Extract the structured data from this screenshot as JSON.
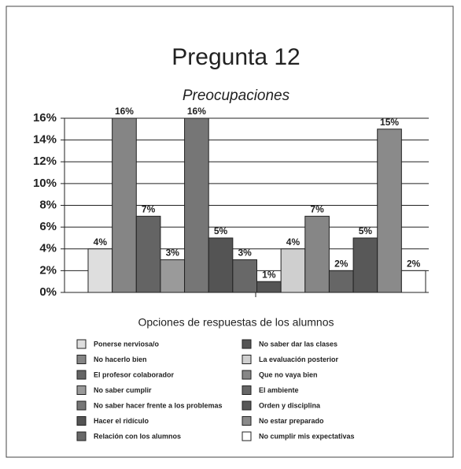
{
  "chart_data": {
    "type": "bar",
    "title": "Pregunta 12",
    "subtitle": "Preocupaciones",
    "xlabel": "Opciones de respuestas de los alumnos",
    "categories": [
      "Ponerse nerviosa/o",
      "No hacerlo bien",
      "El profesor colaborador",
      "No saber cumplir",
      "No saber hacer frente a los problemas",
      "Hacer el ridículo",
      "Relación con los alumnos",
      "No saber dar las clases",
      "La evaluación posterior",
      "Que no vaya bien",
      "El ambiente",
      "Orden y disciplina",
      "No estar preparado",
      "No cumplir mis expectativas"
    ],
    "values": [
      4,
      16,
      7,
      3,
      16,
      5,
      3,
      1,
      4,
      7,
      2,
      5,
      15,
      2
    ],
    "value_labels": [
      "4%",
      "16%",
      "7%",
      "3%",
      "16%",
      "5%",
      "3%",
      "1%",
      "4%",
      "7%",
      "2%",
      "5%",
      "15%",
      "2%"
    ],
    "colors": [
      "#dedede",
      "#858585",
      "#646464",
      "#9a9a9a",
      "#767676",
      "#545454",
      "#686868",
      "#555555",
      "#cfcfcf",
      "#868686",
      "#666666",
      "#585858",
      "#8a8a8a",
      "#ffffff"
    ],
    "ylim": [
      0,
      16
    ],
    "yticks": [
      {
        "value": 0,
        "label": "0%"
      },
      {
        "value": 2,
        "label": "2%"
      },
      {
        "value": 4,
        "label": "4%"
      },
      {
        "value": 6,
        "label": "6%"
      },
      {
        "value": 8,
        "label": "8%"
      },
      {
        "value": 10,
        "label": "10%"
      },
      {
        "value": 12,
        "label": "12%"
      },
      {
        "value": 14,
        "label": "14%"
      },
      {
        "value": 16,
        "label": "16%"
      }
    ],
    "grid": true
  }
}
